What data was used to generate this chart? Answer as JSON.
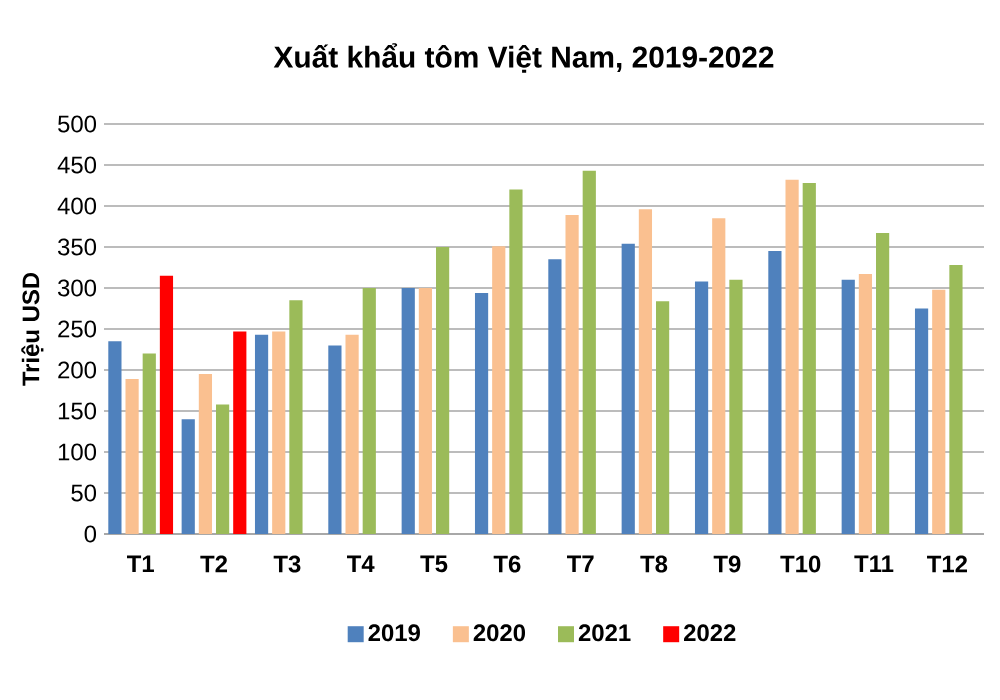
{
  "chart_data": {
    "type": "bar",
    "title": "Xuất khẩu tôm Việt Nam, 2019-2022",
    "ylabel": "Triệu USD",
    "categories": [
      "T1",
      "T2",
      "T3",
      "T4",
      "T5",
      "T6",
      "T7",
      "T8",
      "T9",
      "T10",
      "T11",
      "T12"
    ],
    "series": [
      {
        "name": "2019",
        "color": "#4f81bd",
        "values": [
          235,
          140,
          243,
          230,
          300,
          294,
          335,
          354,
          308,
          345,
          310,
          275
        ]
      },
      {
        "name": "2020",
        "color": "#fac090",
        "values": [
          189,
          195,
          247,
          243,
          300,
          351,
          389,
          396,
          385,
          432,
          317,
          298
        ]
      },
      {
        "name": "2021",
        "color": "#9bbb59",
        "values": [
          220,
          158,
          285,
          300,
          350,
          420,
          443,
          284,
          310,
          428,
          367,
          328
        ]
      },
      {
        "name": "2022",
        "color": "#ff0000",
        "values": [
          315,
          247,
          null,
          null,
          null,
          null,
          null,
          null,
          null,
          null,
          null,
          null
        ]
      }
    ],
    "ylim": [
      0,
      500
    ],
    "yticks": [
      0,
      50,
      100,
      150,
      200,
      250,
      300,
      350,
      400,
      450,
      500
    ],
    "grid": "y",
    "legend": "bottom"
  }
}
